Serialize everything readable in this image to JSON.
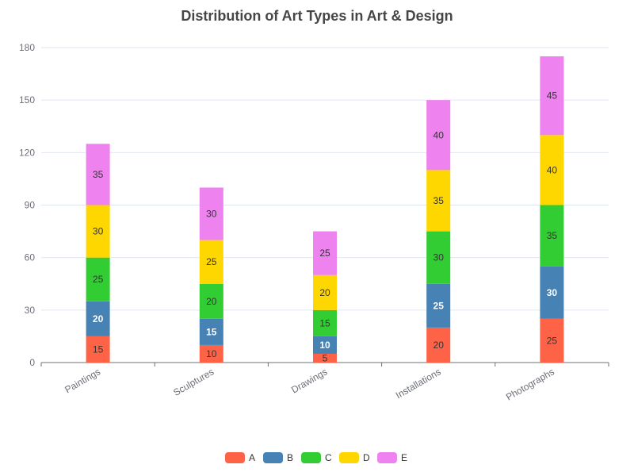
{
  "chart_data": {
    "type": "bar",
    "stacked": true,
    "title": "Distribution of Art Types in Art & Design",
    "categories": [
      "Paintings",
      "Sculptures",
      "Drawings",
      "Installations",
      "Photographs"
    ],
    "series": [
      {
        "name": "A",
        "color": "#ff6347",
        "values": [
          15,
          10,
          5,
          20,
          25
        ]
      },
      {
        "name": "B",
        "color": "#4682b4",
        "values": [
          20,
          15,
          10,
          25,
          30
        ]
      },
      {
        "name": "C",
        "color": "#32cd32",
        "values": [
          25,
          20,
          15,
          30,
          35
        ]
      },
      {
        "name": "D",
        "color": "#ffd700",
        "values": [
          30,
          25,
          20,
          35,
          40
        ]
      },
      {
        "name": "E",
        "color": "#ee82ee",
        "values": [
          35,
          30,
          25,
          40,
          45
        ]
      }
    ],
    "ylim": [
      0,
      180
    ],
    "yticks": [
      0,
      30,
      60,
      90,
      120,
      150,
      180
    ],
    "grid": true,
    "legend_position": "bottom-center",
    "xlabel": "",
    "ylabel": ""
  }
}
